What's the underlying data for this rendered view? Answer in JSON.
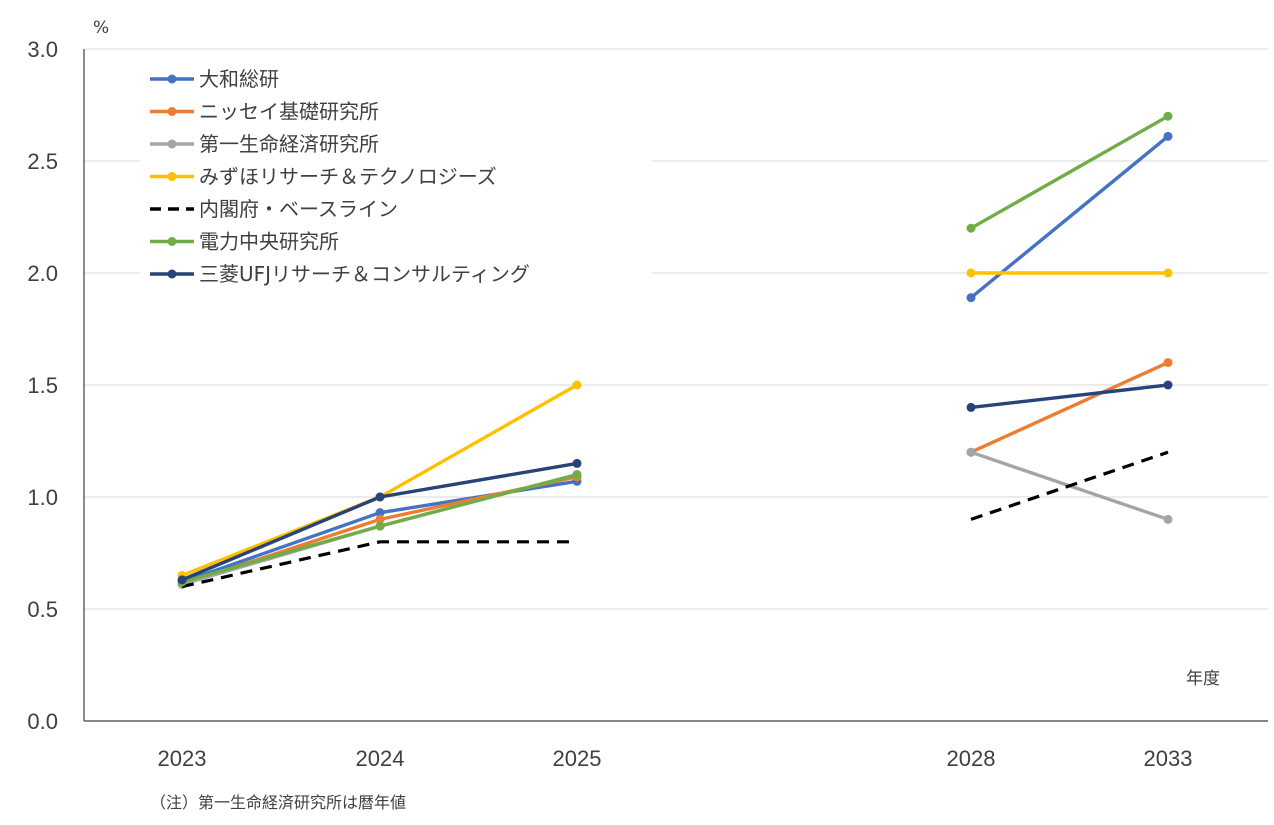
{
  "chart_data": {
    "type": "line",
    "ylabel": "%",
    "xlabel": "年度",
    "ylim": [
      0,
      3.0
    ],
    "yticks": [
      "0.0",
      "0.5",
      "1.0",
      "1.5",
      "2.0",
      "2.5",
      "3.0"
    ],
    "categories": [
      "2023",
      "2024",
      "2025",
      "2028",
      "2033"
    ],
    "grid": true,
    "legend_position": "top-left",
    "note": "（注）第一生命経済研究所は暦年値",
    "series": [
      {
        "name": "大和総研",
        "color": "#4472C4",
        "dash": false,
        "segments": [
          [
            0.62,
            0.93,
            1.07
          ],
          [
            1.89,
            2.61
          ]
        ]
      },
      {
        "name": "ニッセイ基礎研究所",
        "color": "#ED7D31",
        "dash": false,
        "segments": [
          [
            0.61,
            0.9,
            1.09
          ],
          [
            1.2,
            1.6
          ]
        ]
      },
      {
        "name": "第一生命経済研究所",
        "color": "#A5A5A5",
        "dash": false,
        "segments": [
          [
            0.61,
            0.87,
            1.1
          ],
          [
            1.2,
            0.9
          ]
        ]
      },
      {
        "name": "みずほリサーチ＆テクノロジーズ",
        "color": "#FFC000",
        "dash": false,
        "segments": [
          [
            0.65,
            1.0,
            1.5
          ],
          [
            2.0,
            2.0
          ]
        ]
      },
      {
        "name": "内閣府・ベースライン",
        "color": "#000000",
        "dash": true,
        "segments": [
          [
            0.6,
            0.8,
            0.8
          ],
          [
            0.9,
            1.2
          ]
        ]
      },
      {
        "name": "電力中央研究所",
        "color": "#70AD47",
        "dash": false,
        "segments": [
          [
            0.62,
            0.87,
            1.1
          ],
          [
            2.2,
            2.7
          ]
        ]
      },
      {
        "name": "三菱UFJリサーチ＆コンサルティング",
        "color": "#264478",
        "dash": false,
        "segments": [
          [
            0.63,
            1.0,
            1.15
          ],
          [
            1.4,
            1.5
          ]
        ]
      }
    ]
  }
}
